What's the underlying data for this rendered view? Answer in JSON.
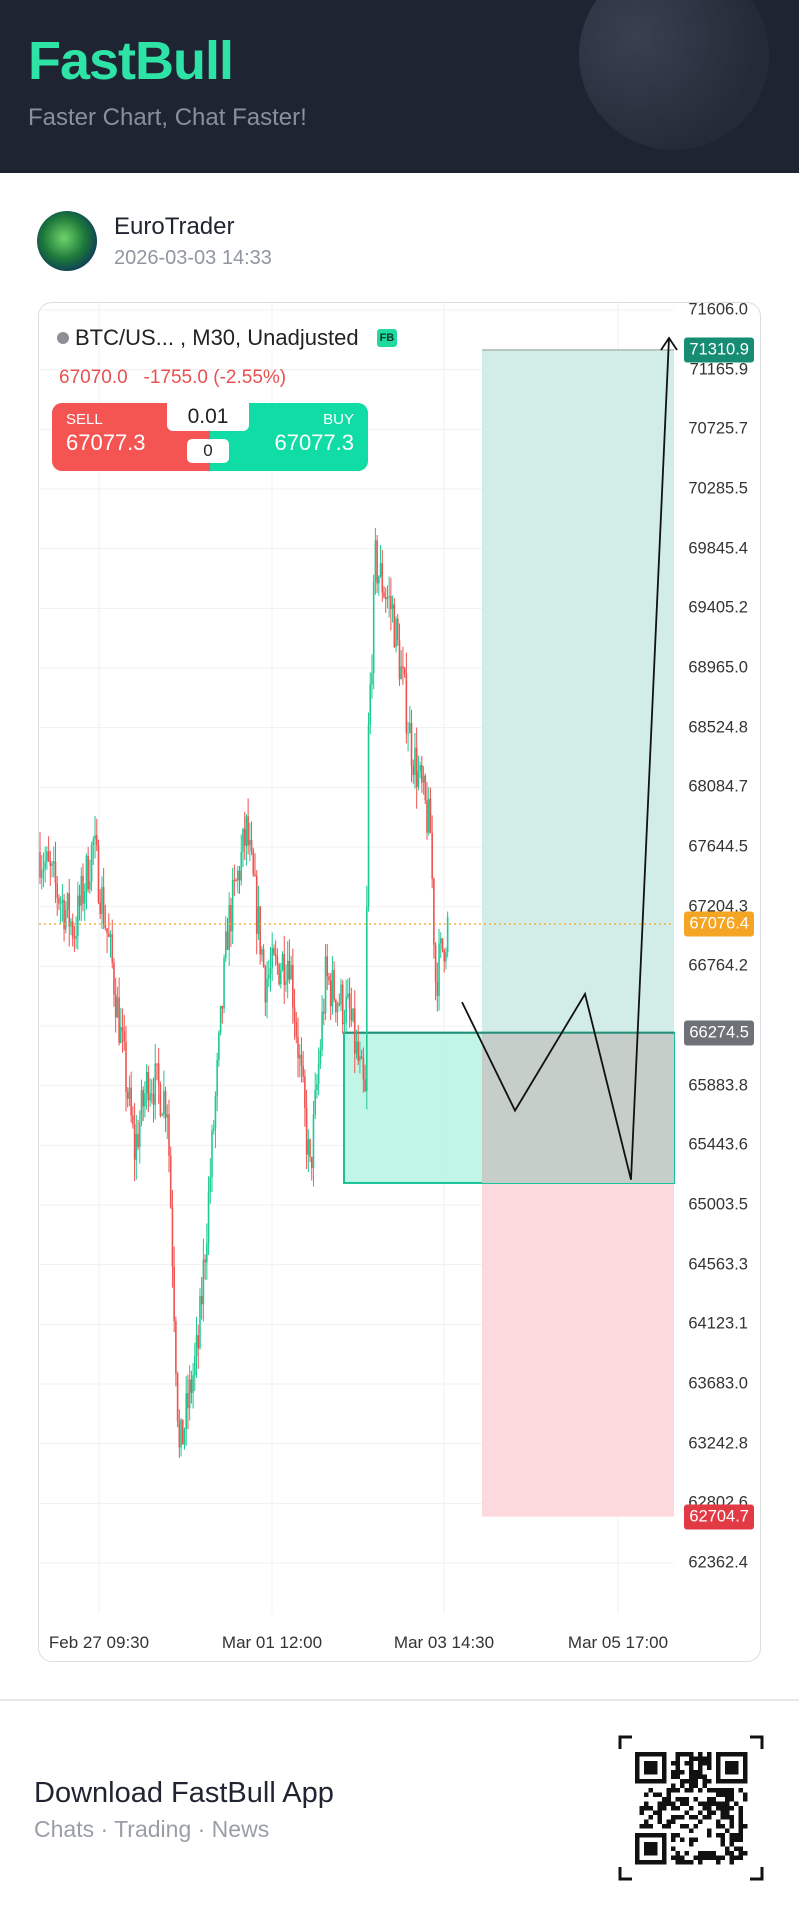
{
  "header": {
    "logo": "FastBull",
    "tagline": "Faster Chart, Chat Faster!"
  },
  "post": {
    "author": "EuroTrader",
    "date": "2026-03-03 14:33"
  },
  "chart": {
    "symbol": "BTC/US...",
    "symbol_suffix": ", M30, Unadjusted",
    "badge": "FB",
    "last": "67070.0",
    "change": "-1755.0 (-2.55%)",
    "sell_label": "SELL",
    "sell_price": "67077.3",
    "buy_label": "BUY",
    "buy_price": "67077.3",
    "quantity": "0.01",
    "spread": "0",
    "colors": {
      "up": "#1fc994",
      "down": "#ef5350",
      "profit": "#d2ede8",
      "loss": "#fbd9dc",
      "entry_box": "#b6f5e2",
      "current": "#f5a524"
    }
  },
  "chart_data": {
    "type": "candlestick",
    "y_ticks": [
      "71606.0",
      "71165.9",
      "70725.7",
      "70285.5",
      "69845.4",
      "69405.2",
      "68965.0",
      "68524.8",
      "68084.7",
      "67644.5",
      "67204.3",
      "66764.2",
      "65883.8",
      "65443.6",
      "65003.5",
      "64563.3",
      "64123.1",
      "63683.0",
      "63242.8",
      "62802.6",
      "62362.4"
    ],
    "ylim": [
      62362.4,
      71606.0
    ],
    "x_ticks": [
      "Feb 27 09:30",
      "Mar 01 12:00",
      "Mar 03 14:30",
      "Mar 05 17:00"
    ],
    "price_tags": {
      "take_profit": "71310.9",
      "current": "67076.4",
      "entry": "66274.5",
      "stop_loss": "62704.7"
    },
    "approx_path": [
      [
        1,
        67578
      ],
      [
        20,
        67032
      ],
      [
        31,
        67667
      ],
      [
        42,
        66766
      ],
      [
        55,
        65409
      ],
      [
        63,
        65955
      ],
      [
        74,
        65771
      ],
      [
        81,
        63159
      ],
      [
        92,
        63971
      ],
      [
        102,
        65771
      ],
      [
        109,
        67032
      ],
      [
        120,
        67755
      ],
      [
        131,
        66671
      ],
      [
        145,
        66855
      ],
      [
        157,
        65232
      ],
      [
        166,
        66671
      ],
      [
        180,
        66405
      ],
      [
        189,
        65771
      ],
      [
        191,
        68478
      ],
      [
        195,
        69740
      ],
      [
        205,
        69378
      ],
      [
        216,
        68390
      ],
      [
        227,
        67755
      ],
      [
        230,
        66671
      ],
      [
        237,
        67070
      ]
    ],
    "entry_box_low": 65166,
    "drawn_path": [
      [
        66500,
        "Mar 03 14:30"
      ],
      [
        65700,
        ""
      ],
      [
        66560,
        ""
      ],
      [
        65190,
        ""
      ],
      [
        71310.9,
        ""
      ]
    ]
  },
  "footer": {
    "title": "Download FastBull App",
    "subtitle": "Chats · Trading · News"
  }
}
